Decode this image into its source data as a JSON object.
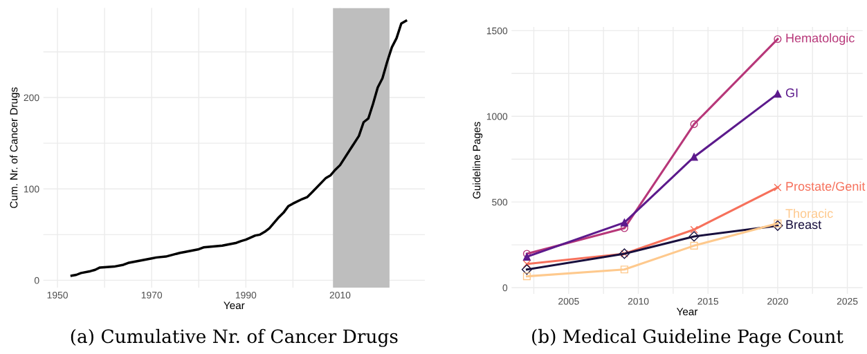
{
  "chart_data": [
    {
      "type": "line",
      "title": "(a) Cumulative Nr. of Cancer Drugs",
      "xlabel": "Year",
      "ylabel": "Cum. Nr. of Cancer Drugs",
      "x": [
        1953,
        1954,
        1955,
        1957,
        1958,
        1959,
        1962,
        1964,
        1965,
        1970,
        1971,
        1973,
        1976,
        1977,
        1980,
        1981,
        1985,
        1988,
        1989,
        1990,
        1992,
        1993,
        1994,
        1995,
        1996,
        1997,
        1998,
        1999,
        2000,
        2002,
        2003,
        2004,
        2007,
        2008,
        2009,
        2010,
        2014,
        2015,
        2016,
        2017,
        2018,
        2019,
        2020,
        2021,
        2022,
        2023,
        2024
      ],
      "series": [
        {
          "color": "#000000",
          "values": [
            5,
            6,
            8,
            10,
            11.5,
            14,
            15,
            17,
            19,
            24,
            25,
            26,
            30,
            31,
            34,
            36,
            38,
            41,
            43,
            44.5,
            49,
            50,
            53,
            57,
            63,
            69,
            74,
            81,
            84,
            89,
            91,
            96,
            112,
            115,
            121,
            126,
            158,
            173,
            177,
            193,
            211,
            221,
            239,
            255,
            265,
            281,
            284
          ]
        }
      ],
      "xlim": [
        1947,
        2028
      ],
      "ylim": [
        -8,
        298
      ],
      "xticks": [
        1950,
        {
          "value": 1960,
          "label": null
        },
        1970,
        {
          "value": 1980,
          "label": null
        },
        1990,
        {
          "value": 2000,
          "label": null
        },
        2010,
        {
          "value": 2020,
          "label": null
        }
      ],
      "yticks": [
        0,
        {
          "value": 50,
          "label": null
        },
        100,
        {
          "value": 150,
          "label": null
        },
        200,
        {
          "value": 250,
          "label": null
        }
      ],
      "bands": [
        {
          "axis": "x",
          "from": 2008.5,
          "to": 2020.5,
          "color": "#bebebe"
        }
      ],
      "grid": true,
      "legend": false,
      "marker": "none",
      "line_style": "solid"
    },
    {
      "type": "line",
      "title": "(b) Medical Guideline Page Count",
      "xlabel": "Year",
      "ylabel": "Guideline Pages",
      "x": [
        2002,
        2009,
        2014,
        2020
      ],
      "series": [
        {
          "name": "Hematologic",
          "color": "#b73779",
          "marker": "circle",
          "values": [
            198,
            347,
            954,
            1451
          ]
        },
        {
          "name": "GI",
          "color": "#5c1a8c",
          "marker": "triangle",
          "values": [
            180,
            380,
            763,
            1131
          ]
        },
        {
          "name": "Prostate/Genit",
          "color": "#f6705b",
          "marker": "cross",
          "values": [
            138,
            198,
            339,
            585
          ]
        },
        {
          "name": "Breast",
          "color": "#180f3d",
          "marker": "diamond",
          "values": [
            106,
            198,
            299,
            362
          ]
        },
        {
          "name": "Thoracic",
          "color": "#fec98d",
          "marker": "square",
          "values": [
            66,
            106,
            245,
            375
          ]
        }
      ],
      "xlim": [
        2000.9,
        2026.1
      ],
      "ylim": [
        -36,
        1522
      ],
      "xticks": [
        {
          "value": 2002.5,
          "label": null
        },
        2005,
        {
          "value": 2007.5,
          "label": null
        },
        2010,
        {
          "value": 2012.5,
          "label": null
        },
        2015,
        {
          "value": 2017.5,
          "label": null
        },
        2020,
        {
          "value": 2022.5,
          "label": null
        },
        2025
      ],
      "yticks": [
        0,
        {
          "value": 250,
          "label": null
        },
        500,
        {
          "value": 750,
          "label": null
        },
        1000,
        {
          "value": 1250,
          "label": null
        },
        1500
      ],
      "grid": true,
      "legend": false,
      "line_style": "solid"
    }
  ]
}
